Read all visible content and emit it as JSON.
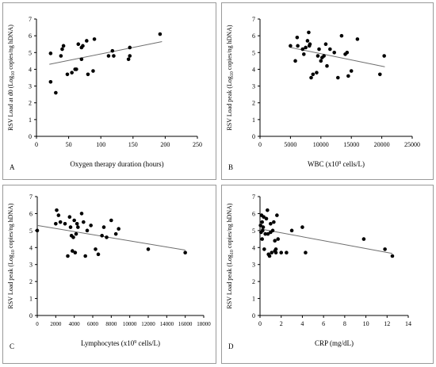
{
  "chart_data": [
    {
      "type": "scatter",
      "panel_label": "A",
      "xlabel": "Oxygen therapy duration (hours)",
      "ylabel_parts": {
        "main": "RSV Load at d0  (Log",
        "sub": "10",
        "rest": " copies/ng hDNA)"
      },
      "xlim": [
        0,
        250
      ],
      "ylim": [
        0,
        7
      ],
      "xticks": [
        0,
        50,
        100,
        150,
        200,
        250
      ],
      "yticks": [
        0,
        1,
        2,
        3,
        4,
        5,
        6,
        7
      ],
      "points": [
        [
          22,
          4.95
        ],
        [
          22,
          3.25
        ],
        [
          30,
          2.6
        ],
        [
          38,
          4.8
        ],
        [
          40,
          5.2
        ],
        [
          42,
          5.4
        ],
        [
          48,
          3.7
        ],
        [
          55,
          3.8
        ],
        [
          60,
          4.0
        ],
        [
          62,
          4.0
        ],
        [
          65,
          5.5
        ],
        [
          70,
          4.6
        ],
        [
          70,
          5.3
        ],
        [
          72,
          5.4
        ],
        [
          78,
          5.7
        ],
        [
          80,
          3.7
        ],
        [
          88,
          3.9
        ],
        [
          90,
          5.8
        ],
        [
          112,
          4.8
        ],
        [
          118,
          5.1
        ],
        [
          120,
          4.8
        ],
        [
          143,
          4.6
        ],
        [
          145,
          4.8
        ],
        [
          145,
          5.3
        ],
        [
          192,
          6.1
        ]
      ],
      "trend": [
        [
          20,
          4.3
        ],
        [
          195,
          5.65
        ]
      ]
    },
    {
      "type": "scatter",
      "panel_label": "B",
      "xlabel_parts": {
        "main": "WBC (x10",
        "sup": "9",
        "rest": " cells/L)"
      },
      "ylabel_parts": {
        "main": "RSV Load peak  (Log",
        "sub": "10",
        "rest": " copies/ng hDNA)"
      },
      "xlim": [
        0,
        25000
      ],
      "ylim": [
        0,
        7
      ],
      "xticks": [
        0,
        5000,
        10000,
        15000,
        20000,
        25000
      ],
      "yticks": [
        0,
        1,
        2,
        3,
        4,
        5,
        6,
        7
      ],
      "points": [
        [
          5000,
          5.4
        ],
        [
          5800,
          4.5
        ],
        [
          6100,
          5.9
        ],
        [
          6200,
          5.4
        ],
        [
          7000,
          5.2
        ],
        [
          7200,
          4.9
        ],
        [
          7500,
          5.3
        ],
        [
          7800,
          5.7
        ],
        [
          8000,
          6.2
        ],
        [
          8100,
          5.4
        ],
        [
          8200,
          5.5
        ],
        [
          8400,
          3.5
        ],
        [
          8700,
          3.7
        ],
        [
          9300,
          3.8
        ],
        [
          9500,
          4.8
        ],
        [
          9700,
          5.2
        ],
        [
          10000,
          4.5
        ],
        [
          10200,
          4.7
        ],
        [
          10500,
          4.8
        ],
        [
          10800,
          5.5
        ],
        [
          11000,
          4.2
        ],
        [
          11500,
          5.2
        ],
        [
          12200,
          5.0
        ],
        [
          12800,
          3.5
        ],
        [
          13400,
          6.0
        ],
        [
          14000,
          4.9
        ],
        [
          14300,
          5.0
        ],
        [
          14500,
          3.6
        ],
        [
          15000,
          3.9
        ],
        [
          16000,
          5.8
        ],
        [
          19700,
          3.7
        ],
        [
          20400,
          4.8
        ]
      ],
      "trend": [
        [
          5000,
          5.3
        ],
        [
          20500,
          4.15
        ]
      ]
    },
    {
      "type": "scatter",
      "panel_label": "C",
      "xlabel_parts": {
        "main": "Lymphocytes (x10",
        "sup": "9",
        "rest": " cells/L)"
      },
      "ylabel_parts": {
        "main": "RSV Load peak  (Log",
        "sub": "10",
        "rest": " copies/ng hDNA)"
      },
      "xlim": [
        0,
        18000
      ],
      "ylim": [
        0,
        7
      ],
      "xticks": [
        0,
        2000,
        4000,
        6000,
        8000,
        10000,
        12000,
        14000,
        16000,
        18000
      ],
      "yticks": [
        0,
        1,
        2,
        3,
        4,
        5,
        6,
        7
      ],
      "points": [
        [
          0,
          5.0
        ],
        [
          2000,
          5.4
        ],
        [
          2100,
          6.2
        ],
        [
          2300,
          5.9
        ],
        [
          2500,
          5.5
        ],
        [
          3000,
          5.4
        ],
        [
          3300,
          3.5
        ],
        [
          3500,
          5.8
        ],
        [
          3600,
          5.2
        ],
        [
          3700,
          4.7
        ],
        [
          3800,
          3.8
        ],
        [
          3900,
          4.6
        ],
        [
          4000,
          5.6
        ],
        [
          4100,
          3.7
        ],
        [
          4200,
          4.8
        ],
        [
          4300,
          5.4
        ],
        [
          4400,
          5.2
        ],
        [
          4800,
          6.0
        ],
        [
          5000,
          5.5
        ],
        [
          5200,
          3.5
        ],
        [
          5400,
          5.0
        ],
        [
          5800,
          5.3
        ],
        [
          6300,
          3.9
        ],
        [
          6600,
          3.6
        ],
        [
          7000,
          4.7
        ],
        [
          7200,
          5.2
        ],
        [
          7500,
          4.6
        ],
        [
          8000,
          5.6
        ],
        [
          8500,
          4.8
        ],
        [
          8800,
          5.1
        ],
        [
          12000,
          3.9
        ],
        [
          16000,
          3.7
        ]
      ],
      "trend": [
        [
          0,
          5.3
        ],
        [
          16000,
          3.85
        ]
      ]
    },
    {
      "type": "scatter",
      "panel_label": "D",
      "xlabel": "CRP (mg/dL)",
      "ylabel_parts": {
        "main": "RSV Load peak  (Log",
        "sub": "10",
        "rest": " copies/ng hDNA)"
      },
      "xlim": [
        0,
        14
      ],
      "ylim": [
        0,
        7
      ],
      "xticks": [
        0,
        2,
        4,
        6,
        8,
        10,
        12,
        14
      ],
      "yticks": [
        0,
        1,
        2,
        3,
        4,
        5,
        6,
        7
      ],
      "points": [
        [
          0.05,
          5.3
        ],
        [
          0.1,
          4.9
        ],
        [
          0.15,
          5.9
        ],
        [
          0.2,
          4.5
        ],
        [
          0.2,
          5.5
        ],
        [
          0.25,
          5.0
        ],
        [
          0.3,
          5.2
        ],
        [
          0.35,
          5.8
        ],
        [
          0.4,
          3.9
        ],
        [
          0.5,
          4.8
        ],
        [
          0.6,
          5.7
        ],
        [
          0.7,
          6.2
        ],
        [
          0.75,
          4.8
        ],
        [
          0.8,
          3.6
        ],
        [
          0.9,
          3.5
        ],
        [
          1.0,
          5.4
        ],
        [
          1.0,
          4.9
        ],
        [
          1.1,
          3.7
        ],
        [
          1.2,
          5.0
        ],
        [
          1.3,
          5.5
        ],
        [
          1.4,
          3.8
        ],
        [
          1.4,
          4.4
        ],
        [
          1.5,
          3.9
        ],
        [
          1.5,
          3.7
        ],
        [
          1.6,
          5.9
        ],
        [
          1.7,
          4.5
        ],
        [
          2.0,
          3.7
        ],
        [
          2.5,
          3.7
        ],
        [
          3.0,
          5.0
        ],
        [
          4.0,
          5.2
        ],
        [
          4.3,
          3.7
        ],
        [
          9.8,
          4.5
        ],
        [
          11.8,
          3.9
        ],
        [
          12.5,
          3.5
        ]
      ],
      "trend": [
        [
          0,
          5.1
        ],
        [
          12.5,
          3.65
        ]
      ]
    }
  ]
}
